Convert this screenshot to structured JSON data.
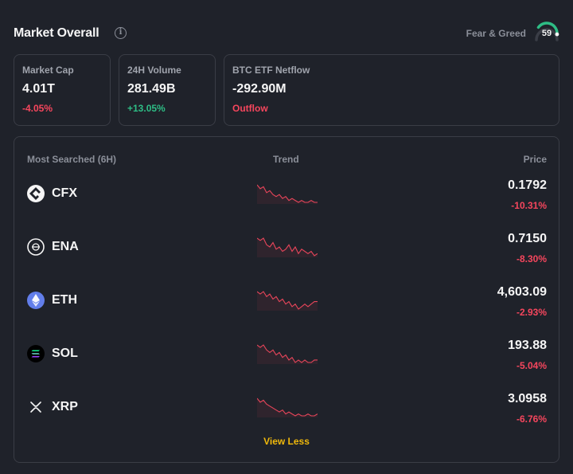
{
  "header": {
    "title": "Market Overall",
    "info_icon": "info-icon",
    "fear_greed_label": "Fear & Greed",
    "fear_greed_value": "59",
    "fear_greed_level": 0.59,
    "gauge_color": "#2ebd85"
  },
  "stats": [
    {
      "label": "Market Cap",
      "value": "4.01T",
      "change": "-4.05%",
      "direction": "down"
    },
    {
      "label": "24H Volume",
      "value": "281.49B",
      "change": "+13.05%",
      "direction": "up"
    },
    {
      "label": "BTC ETF Netflow",
      "value": "-292.90M",
      "change": "Outflow",
      "direction": "down"
    }
  ],
  "table": {
    "col_searched": "Most Searched (6H)",
    "col_trend": "Trend",
    "col_price": "Price",
    "rows": [
      {
        "symbol": "CFX",
        "icon": "cfx-icon",
        "price": "0.1792",
        "change": "-10.31%",
        "trend": [
          10,
          8,
          9,
          6,
          7,
          5,
          4,
          5,
          3,
          4,
          2,
          3,
          2,
          1,
          2,
          1,
          1,
          2,
          1,
          1
        ]
      },
      {
        "symbol": "ENA",
        "icon": "ena-icon",
        "price": "0.7150",
        "change": "-8.30%",
        "trend": [
          9,
          8,
          9,
          6,
          5,
          7,
          4,
          5,
          3,
          4,
          6,
          3,
          5,
          2,
          4,
          3,
          2,
          3,
          1,
          2
        ]
      },
      {
        "symbol": "ETH",
        "icon": "eth-icon",
        "price": "4,603.09",
        "change": "-2.93%",
        "trend": [
          8,
          7,
          8,
          6,
          7,
          5,
          6,
          4,
          5,
          3,
          4,
          2,
          3,
          1,
          2,
          3,
          2,
          3,
          4,
          4
        ]
      },
      {
        "symbol": "SOL",
        "icon": "sol-icon",
        "price": "193.88",
        "change": "-5.04%",
        "trend": [
          9,
          8,
          9,
          7,
          6,
          7,
          5,
          6,
          4,
          5,
          3,
          4,
          2,
          3,
          2,
          3,
          2,
          2,
          3,
          3
        ]
      },
      {
        "symbol": "XRP",
        "icon": "xrp-icon",
        "price": "3.0958",
        "change": "-6.76%",
        "trend": [
          10,
          8,
          9,
          7,
          6,
          5,
          4,
          3,
          4,
          2,
          3,
          2,
          1,
          2,
          1,
          1,
          2,
          1,
          1,
          2
        ]
      }
    ]
  },
  "view_less": "View Less",
  "colors": {
    "down": "#f6465d",
    "up": "#2ebd85",
    "accent": "#f0b90b",
    "trend_line": "#e8455a"
  }
}
